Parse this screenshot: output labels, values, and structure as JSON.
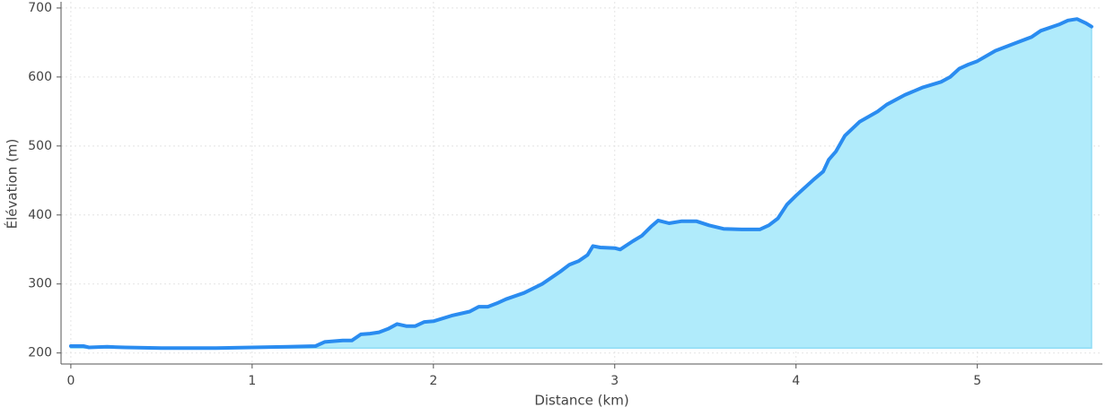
{
  "chart_data": {
    "type": "area",
    "x_label": "Distance (km)",
    "y_label": "Élévation (m)",
    "x": [
      0,
      0.07,
      0.1,
      0.2,
      0.3,
      0.5,
      0.8,
      1.0,
      1.2,
      1.35,
      1.4,
      1.5,
      1.55,
      1.6,
      1.65,
      1.7,
      1.75,
      1.8,
      1.85,
      1.9,
      1.95,
      2.0,
      2.1,
      2.2,
      2.25,
      2.3,
      2.35,
      2.4,
      2.5,
      2.6,
      2.7,
      2.75,
      2.8,
      2.85,
      2.88,
      2.92,
      3.0,
      3.03,
      3.1,
      3.15,
      3.2,
      3.24,
      3.3,
      3.37,
      3.45,
      3.52,
      3.6,
      3.7,
      3.8,
      3.85,
      3.9,
      3.95,
      4.0,
      4.1,
      4.15,
      4.18,
      4.22,
      4.27,
      4.35,
      4.45,
      4.5,
      4.6,
      4.7,
      4.8,
      4.85,
      4.9,
      4.95,
      5.0,
      5.1,
      5.2,
      5.3,
      5.35,
      5.45,
      5.5,
      5.55,
      5.6,
      5.63
    ],
    "values": [
      210,
      210,
      208,
      209,
      208,
      207,
      207,
      208,
      209,
      210,
      216,
      218,
      218,
      227,
      228,
      230,
      235,
      242,
      239,
      239,
      245,
      246,
      254,
      260,
      267,
      267,
      272,
      278,
      287,
      300,
      318,
      328,
      333,
      342,
      355,
      353,
      352,
      350,
      362,
      370,
      383,
      392,
      388,
      391,
      391,
      385,
      380,
      379,
      379,
      385,
      395,
      415,
      428,
      452,
      463,
      480,
      492,
      515,
      535,
      550,
      560,
      574,
      585,
      593,
      600,
      612,
      618,
      623,
      638,
      648,
      658,
      667,
      676,
      682,
      684,
      678,
      673
    ],
    "color": "#2a8cf0",
    "fill_color": "#b0ebfb",
    "xlim": [
      -0.054,
      5.69
    ],
    "ylim": [
      184,
      709
    ],
    "xticks": [
      0,
      1,
      2,
      3,
      4,
      5
    ],
    "yticks": [
      200,
      300,
      400,
      500,
      600,
      700
    ],
    "grid": true
  }
}
